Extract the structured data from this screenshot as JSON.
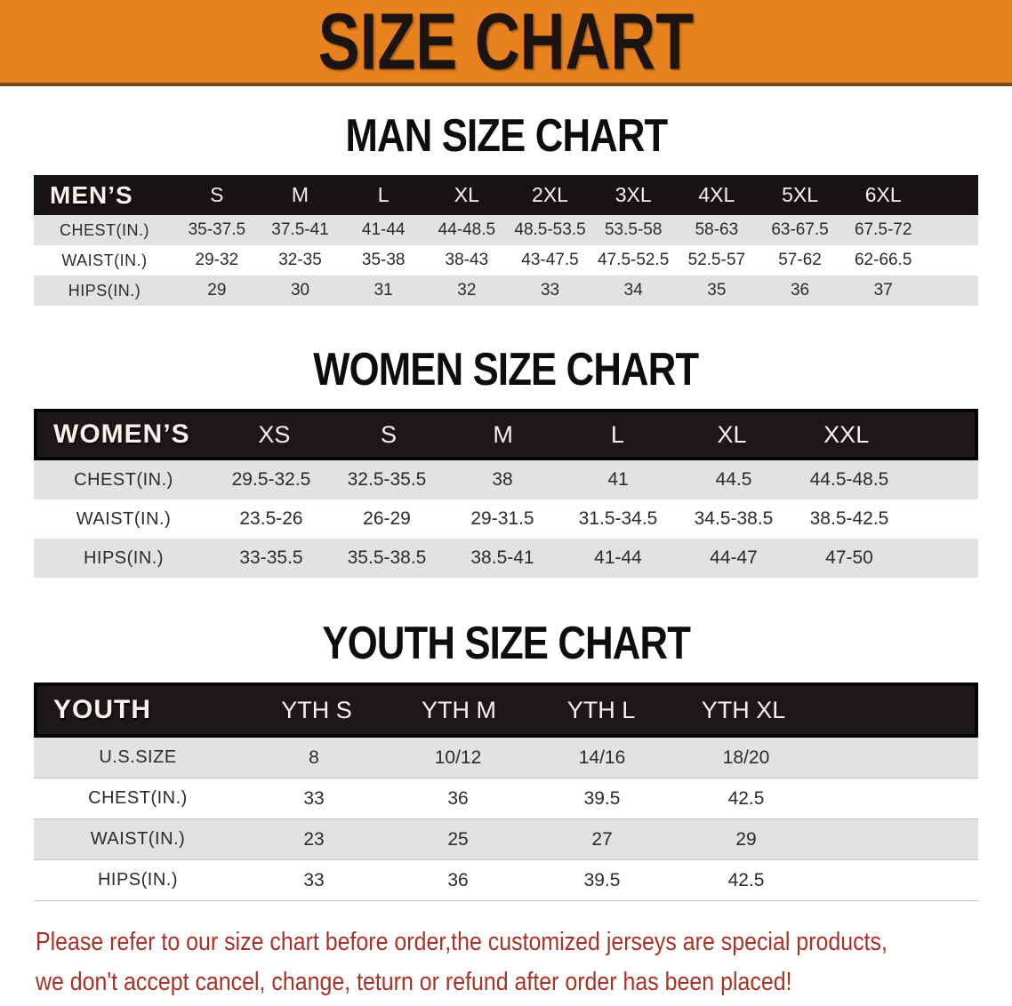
{
  "banner": {
    "title": "SIZE CHART",
    "bg_color": "#e8821f",
    "text_color": "#1b1410"
  },
  "tables": [
    {
      "id": "men",
      "heading": "MAN SIZE CHART",
      "header_label": "MEN’S",
      "columns": [
        "S",
        "M",
        "L",
        "XL",
        "2XL",
        "3XL",
        "4XL",
        "5XL",
        "6XL"
      ],
      "rows": [
        {
          "label": "CHEST(IN.)",
          "values": [
            "35-37.5",
            "37.5-41",
            "41-44",
            "44-48.5",
            "48.5-53.5",
            "53.5-58",
            "58-63",
            "63-67.5",
            "67.5-72"
          ]
        },
        {
          "label": "WAIST(IN.)",
          "values": [
            "29-32",
            "32-35",
            "35-38",
            "38-43",
            "43-47.5",
            "47.5-52.5",
            "52.5-57",
            "57-62",
            "62-66.5"
          ]
        },
        {
          "label": "HIPS(IN.)",
          "values": [
            "29",
            "30",
            "31",
            "32",
            "33",
            "34",
            "35",
            "36",
            "37"
          ]
        }
      ]
    },
    {
      "id": "women",
      "heading": "WOMEN SIZE CHART",
      "header_label": "WOMEN’S",
      "columns": [
        "XS",
        "S",
        "M",
        "L",
        "XL",
        "XXL"
      ],
      "rows": [
        {
          "label": "CHEST(IN.)",
          "values": [
            "29.5-32.5",
            "32.5-35.5",
            "38",
            "41",
            "44.5",
            "44.5-48.5"
          ]
        },
        {
          "label": "WAIST(IN.)",
          "values": [
            "23.5-26",
            "26-29",
            "29-31.5",
            "31.5-34.5",
            "34.5-38.5",
            "38.5-42.5"
          ]
        },
        {
          "label": "HIPS(IN.)",
          "values": [
            "33-35.5",
            "35.5-38.5",
            "38.5-41",
            "41-44",
            "44-47",
            "47-50"
          ]
        }
      ]
    },
    {
      "id": "youth",
      "heading": "YOUTH SIZE CHART",
      "header_label": "YOUTH",
      "columns": [
        "YTH S",
        "YTH M",
        "YTH L",
        "YTH XL"
      ],
      "rows": [
        {
          "label": "U.S.SIZE",
          "values": [
            "8",
            "10/12",
            "14/16",
            "18/20"
          ]
        },
        {
          "label": "CHEST(IN.)",
          "values": [
            "33",
            "36",
            "39.5",
            "42.5"
          ]
        },
        {
          "label": "WAIST(IN.)",
          "values": [
            "23",
            "25",
            "27",
            "29"
          ]
        },
        {
          "label": "HIPS(IN.)",
          "values": [
            "33",
            "36",
            "39.5",
            "42.5"
          ]
        }
      ]
    }
  ],
  "disclaimer": {
    "line1": "Please refer to our size chart before order,the customized jerseys are special products,",
    "line2": "we don't accept cancel, change, teturn or refund after order has been placed!",
    "color": "#a93226"
  }
}
